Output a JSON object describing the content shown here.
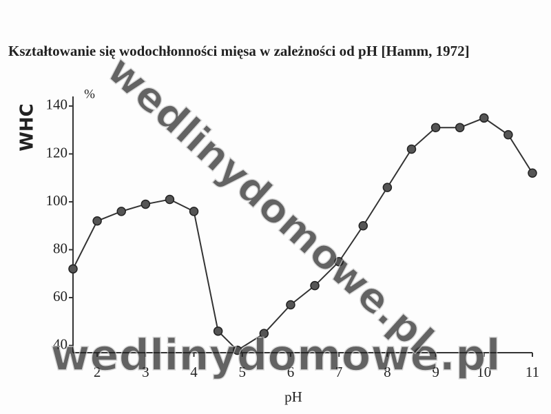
{
  "chart_data": {
    "type": "line",
    "title": "Kształtowanie się wodochłonności mięsa w zależności od pH [Hamm, 1972]",
    "y_label": "WHC",
    "y_unit": "%",
    "x_label": "pH",
    "watermark": "wedlinydomowe.pl",
    "x": [
      1.5,
      2,
      2.5,
      3,
      3.5,
      4,
      4.5,
      4.9,
      5.45,
      6,
      6.5,
      7,
      7.5,
      8,
      8.5,
      9,
      9.5,
      10,
      10.5,
      11
    ],
    "series": [
      {
        "name": "WHC",
        "color": "#333333",
        "values": [
          72,
          92,
          96,
          99,
          101,
          96,
          46,
          38,
          45,
          57,
          65,
          75,
          90,
          106,
          122,
          131,
          131,
          135,
          128,
          112
        ]
      }
    ],
    "xlim": [
      1.5,
      11
    ],
    "xticks": [
      2,
      3,
      4,
      5,
      6,
      7,
      8,
      9,
      10,
      11
    ],
    "ylim": [
      37,
      144
    ],
    "yticks": [
      40,
      60,
      80,
      100,
      120,
      140
    ],
    "grid": false
  }
}
